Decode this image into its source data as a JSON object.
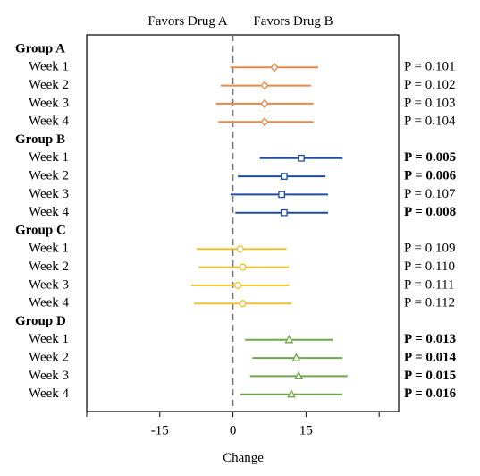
{
  "chart_data": {
    "type": "forest",
    "header": {
      "left": "Favors Drug A",
      "right": "Favors Drug B"
    },
    "xlabel": "Change",
    "xlim": [
      -30,
      34
    ],
    "x_ticks": [
      -30,
      -15,
      0,
      15,
      30
    ],
    "x_tick_labels": [
      "",
      "-15",
      "0",
      "15",
      ""
    ],
    "reference_line": 0,
    "groups": [
      {
        "name": "Group A",
        "color": "#E8894A",
        "marker": "diamond",
        "rows": [
          {
            "label": "Week 1",
            "estimate": 8.5,
            "lower": -0.5,
            "upper": 17.5,
            "p": "P = 0.101",
            "bold": false
          },
          {
            "label": "Week 2",
            "estimate": 6.5,
            "lower": -2.5,
            "upper": 16.0,
            "p": "P = 0.102",
            "bold": false
          },
          {
            "label": "Week 3",
            "estimate": 6.5,
            "lower": -3.5,
            "upper": 16.5,
            "p": "P = 0.103",
            "bold": false
          },
          {
            "label": "Week 4",
            "estimate": 6.5,
            "lower": -3.0,
            "upper": 16.5,
            "p": "P = 0.104",
            "bold": false
          }
        ]
      },
      {
        "name": "Group B",
        "color": "#1F4E9E",
        "marker": "square",
        "rows": [
          {
            "label": "Week 1",
            "estimate": 14.0,
            "lower": 5.5,
            "upper": 22.5,
            "p": "P = 0.005",
            "bold": true
          },
          {
            "label": "Week 2",
            "estimate": 10.5,
            "lower": 1.0,
            "upper": 19.0,
            "p": "P = 0.006",
            "bold": true
          },
          {
            "label": "Week 3",
            "estimate": 10.0,
            "lower": -0.5,
            "upper": 19.5,
            "p": "P = 0.107",
            "bold": false
          },
          {
            "label": "Week 4",
            "estimate": 10.5,
            "lower": 0.5,
            "upper": 19.5,
            "p": "P = 0.008",
            "bold": true
          }
        ]
      },
      {
        "name": "Group C",
        "color": "#F2C12E",
        "marker": "circle",
        "rows": [
          {
            "label": "Week 1",
            "estimate": 1.5,
            "lower": -7.5,
            "upper": 11.0,
            "p": "P = 0.109",
            "bold": false
          },
          {
            "label": "Week 2",
            "estimate": 2.0,
            "lower": -7.0,
            "upper": 11.5,
            "p": "P = 0.110",
            "bold": false
          },
          {
            "label": "Week 3",
            "estimate": 1.0,
            "lower": -8.5,
            "upper": 11.5,
            "p": "P = 0.111",
            "bold": false
          },
          {
            "label": "Week 4",
            "estimate": 2.0,
            "lower": -8.0,
            "upper": 12.0,
            "p": "P = 0.112",
            "bold": false
          }
        ]
      },
      {
        "name": "Group D",
        "color": "#6FA84A",
        "marker": "triangle",
        "rows": [
          {
            "label": "Week 1",
            "estimate": 11.5,
            "lower": 2.5,
            "upper": 20.5,
            "p": "P = 0.013",
            "bold": true
          },
          {
            "label": "Week 2",
            "estimate": 13.0,
            "lower": 4.0,
            "upper": 22.5,
            "p": "P = 0.014",
            "bold": true
          },
          {
            "label": "Week 3",
            "estimate": 13.5,
            "lower": 3.5,
            "upper": 23.5,
            "p": "P = 0.015",
            "bold": true
          },
          {
            "label": "Week 4",
            "estimate": 12.0,
            "lower": 1.5,
            "upper": 22.5,
            "p": "P = 0.016",
            "bold": true
          }
        ]
      }
    ]
  }
}
